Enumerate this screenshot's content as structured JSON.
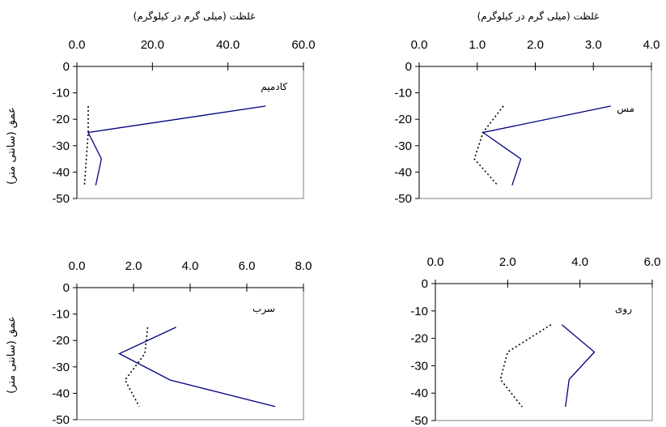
{
  "top_axis_label": "غلظت (میلی گرم در کیلوگرم)",
  "y_axis_label": "عمق (سانتی متر)",
  "chart_data": [
    {
      "type": "line",
      "annotation": "کادمیم",
      "xlim": [
        0,
        60
      ],
      "x_ticks": [
        "0.0",
        "20.0",
        "40.0",
        "60.0"
      ],
      "ylim": [
        -50,
        0
      ],
      "y_ticks": [
        "0",
        "-10",
        "-20",
        "-30",
        "-40",
        "-50"
      ],
      "series": [
        {
          "style": "solid",
          "color": "#000080",
          "points": [
            [
              50.0,
              -15
            ],
            [
              3.0,
              -25
            ],
            [
              6.5,
              -35
            ],
            [
              5.0,
              -45
            ]
          ]
        },
        {
          "style": "dotted",
          "color": "#000000",
          "points": [
            [
              3.0,
              -15
            ],
            [
              3.0,
              -25
            ],
            [
              2.5,
              -35
            ],
            [
              2.0,
              -45
            ]
          ]
        }
      ]
    },
    {
      "type": "line",
      "annotation": "مس",
      "xlim": [
        0,
        4
      ],
      "x_ticks": [
        "0.0",
        "1.0",
        "2.0",
        "3.0",
        "4.0"
      ],
      "ylim": [
        -50,
        0
      ],
      "y_ticks": [
        "0",
        "-10",
        "-20",
        "-30",
        "-40",
        "-50"
      ],
      "series": [
        {
          "style": "solid",
          "color": "#000080",
          "points": [
            [
              3.3,
              -15
            ],
            [
              1.1,
              -25
            ],
            [
              1.75,
              -35
            ],
            [
              1.6,
              -45
            ]
          ]
        },
        {
          "style": "dotted",
          "color": "#000000",
          "points": [
            [
              1.45,
              -15
            ],
            [
              1.1,
              -25
            ],
            [
              0.95,
              -35
            ],
            [
              1.35,
              -45
            ]
          ]
        }
      ]
    },
    {
      "type": "line",
      "annotation": "سرب",
      "xlim": [
        0,
        8
      ],
      "x_ticks": [
        "0.0",
        "2.0",
        "4.0",
        "6.0",
        "8.0"
      ],
      "ylim": [
        -50,
        0
      ],
      "y_ticks": [
        "0",
        "-10",
        "-20",
        "-30",
        "-40",
        "-50"
      ],
      "series": [
        {
          "style": "solid",
          "color": "#000080",
          "points": [
            [
              3.5,
              -15
            ],
            [
              1.5,
              -25
            ],
            [
              3.3,
              -35
            ],
            [
              7.0,
              -45
            ]
          ]
        },
        {
          "style": "dotted",
          "color": "#000000",
          "points": [
            [
              2.5,
              -15
            ],
            [
              2.4,
              -25
            ],
            [
              1.7,
              -35
            ],
            [
              2.2,
              -45
            ]
          ]
        }
      ]
    },
    {
      "type": "line",
      "annotation": "روی",
      "xlim": [
        0,
        6
      ],
      "x_ticks": [
        "0.0",
        "2.0",
        "4.0",
        "6.0"
      ],
      "ylim": [
        -50,
        0
      ],
      "y_ticks": [
        "0",
        "-10",
        "-20",
        "-30",
        "-40",
        "-50"
      ],
      "series": [
        {
          "style": "solid",
          "color": "#000080",
          "points": [
            [
              3.5,
              -15
            ],
            [
              4.4,
              -25
            ],
            [
              3.7,
              -35
            ],
            [
              3.6,
              -45
            ]
          ]
        },
        {
          "style": "dotted",
          "color": "#000000",
          "points": [
            [
              3.2,
              -15
            ],
            [
              2.0,
              -25
            ],
            [
              1.8,
              -35
            ],
            [
              2.4,
              -45
            ]
          ]
        }
      ]
    }
  ]
}
